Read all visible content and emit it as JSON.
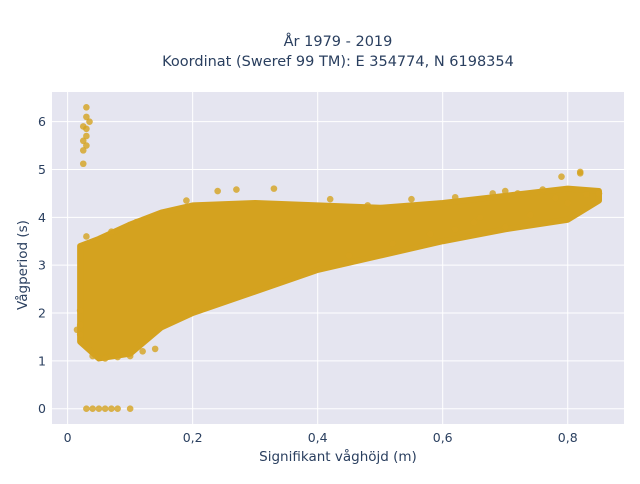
{
  "chart_data": {
    "type": "scatter",
    "title_lines": [
      "År 1979 - 2019",
      "Koordinat (Sweref 99 TM): E 354774, N 6198354"
    ],
    "xlabel": "Signifikant våghöjd (m)",
    "ylabel": "Vågperiod (s)",
    "xlim": [
      -0.025,
      0.89
    ],
    "ylim": [
      -0.32,
      6.62
    ],
    "x_ticks": [
      {
        "value": 0,
        "label": "0"
      },
      {
        "value": 0.2,
        "label": "0,2"
      },
      {
        "value": 0.4,
        "label": "0,4"
      },
      {
        "value": 0.6,
        "label": "0,6"
      },
      {
        "value": 0.8,
        "label": "0,8"
      }
    ],
    "y_ticks": [
      {
        "value": 0,
        "label": "0"
      },
      {
        "value": 1,
        "label": "1"
      },
      {
        "value": 2,
        "label": "2"
      },
      {
        "value": 3,
        "label": "3"
      },
      {
        "value": 4,
        "label": "4"
      },
      {
        "value": 5,
        "label": "5"
      },
      {
        "value": 6,
        "label": "6"
      }
    ],
    "grid": true,
    "legend": "none",
    "colors": {
      "marker": "#d4a21f",
      "plot_background": "#e5e5f0",
      "grid": "#ffffff",
      "text": "#2a3f5f"
    },
    "point_cloud": {
      "description_free": true,
      "envelope": [
        {
          "x": 0.02,
          "ymin": 1.4,
          "ymax": 3.4
        },
        {
          "x": 0.05,
          "ymin": 1.05,
          "ymax": 3.55
        },
        {
          "x": 0.1,
          "ymin": 1.15,
          "ymax": 3.85
        },
        {
          "x": 0.15,
          "ymin": 1.7,
          "ymax": 4.1
        },
        {
          "x": 0.2,
          "ymin": 2.0,
          "ymax": 4.25
        },
        {
          "x": 0.3,
          "ymin": 2.45,
          "ymax": 4.3
        },
        {
          "x": 0.4,
          "ymin": 2.9,
          "ymax": 4.25
        },
        {
          "x": 0.5,
          "ymin": 3.2,
          "ymax": 4.2
        },
        {
          "x": 0.6,
          "ymin": 3.5,
          "ymax": 4.3
        },
        {
          "x": 0.7,
          "ymin": 3.75,
          "ymax": 4.45
        },
        {
          "x": 0.8,
          "ymin": 3.95,
          "ymax": 4.6
        },
        {
          "x": 0.85,
          "ymin": 4.35,
          "ymax": 4.55
        }
      ]
    },
    "points": [
      {
        "x": 0.03,
        "y": 6.3
      },
      {
        "x": 0.03,
        "y": 6.1
      },
      {
        "x": 0.025,
        "y": 5.9
      },
      {
        "x": 0.03,
        "y": 5.85
      },
      {
        "x": 0.025,
        "y": 5.6
      },
      {
        "x": 0.03,
        "y": 5.5
      },
      {
        "x": 0.025,
        "y": 5.4
      },
      {
        "x": 0.03,
        "y": 5.7
      },
      {
        "x": 0.035,
        "y": 6.0
      },
      {
        "x": 0.025,
        "y": 5.12
      },
      {
        "x": 0.03,
        "y": 0
      },
      {
        "x": 0.04,
        "y": 0
      },
      {
        "x": 0.05,
        "y": 0
      },
      {
        "x": 0.06,
        "y": 0
      },
      {
        "x": 0.07,
        "y": 0
      },
      {
        "x": 0.08,
        "y": 0
      },
      {
        "x": 0.1,
        "y": 0
      },
      {
        "x": 0.79,
        "y": 4.85
      },
      {
        "x": 0.82,
        "y": 4.92
      },
      {
        "x": 0.82,
        "y": 4.95
      },
      {
        "x": 0.85,
        "y": 4.5
      },
      {
        "x": 0.83,
        "y": 4.48
      },
      {
        "x": 0.76,
        "y": 4.58
      },
      {
        "x": 0.27,
        "y": 4.58
      },
      {
        "x": 0.33,
        "y": 4.6
      },
      {
        "x": 0.24,
        "y": 4.55
      },
      {
        "x": 0.55,
        "y": 4.38
      },
      {
        "x": 0.62,
        "y": 4.42
      },
      {
        "x": 0.68,
        "y": 4.5
      },
      {
        "x": 0.7,
        "y": 4.55
      },
      {
        "x": 0.72,
        "y": 4.5
      },
      {
        "x": 0.78,
        "y": 4.4
      },
      {
        "x": 0.8,
        "y": 4.3
      },
      {
        "x": 0.74,
        "y": 4.05
      },
      {
        "x": 0.65,
        "y": 3.9
      },
      {
        "x": 0.58,
        "y": 3.65
      },
      {
        "x": 0.52,
        "y": 3.45
      },
      {
        "x": 0.45,
        "y": 3.2
      },
      {
        "x": 0.66,
        "y": 4.0
      },
      {
        "x": 0.7,
        "y": 3.8
      },
      {
        "x": 0.62,
        "y": 3.75
      },
      {
        "x": 0.02,
        "y": 2.05
      },
      {
        "x": 0.02,
        "y": 1.75
      },
      {
        "x": 0.02,
        "y": 1.55
      },
      {
        "x": 0.015,
        "y": 1.65
      },
      {
        "x": 0.12,
        "y": 1.2
      },
      {
        "x": 0.14,
        "y": 1.25
      },
      {
        "x": 0.1,
        "y": 1.1
      },
      {
        "x": 0.06,
        "y": 1.05
      },
      {
        "x": 0.08,
        "y": 1.08
      },
      {
        "x": 0.04,
        "y": 1.1
      },
      {
        "x": 0.11,
        "y": 3.9
      },
      {
        "x": 0.03,
        "y": 3.6
      },
      {
        "x": 0.07,
        "y": 3.7
      },
      {
        "x": 0.19,
        "y": 4.35
      },
      {
        "x": 0.42,
        "y": 4.38
      },
      {
        "x": 0.48,
        "y": 4.25
      }
    ]
  }
}
